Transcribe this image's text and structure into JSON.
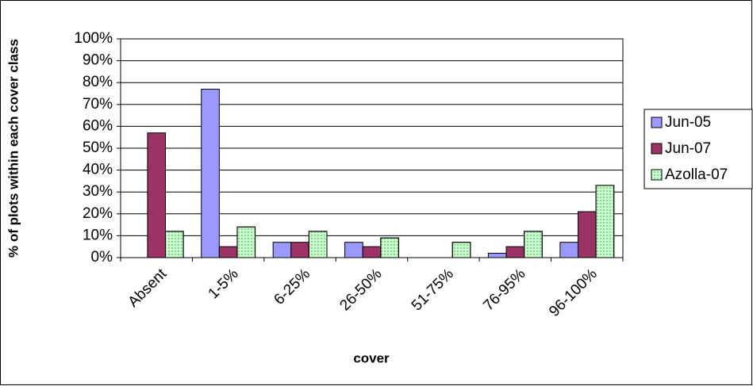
{
  "chart_data": {
    "type": "bar",
    "x_label": "cover",
    "y_label": "% of plots within each cover class",
    "categories": [
      "Absent",
      "1-5%",
      "6-25%",
      "26-50%",
      "51-75%",
      "76-95%",
      "96-100%"
    ],
    "series": [
      {
        "name": "Jun-05",
        "color": "#9999ff",
        "values": [
          0,
          77,
          7,
          7,
          0,
          2,
          7
        ]
      },
      {
        "name": "Jun-07",
        "color": "#993366",
        "values": [
          57,
          5,
          7,
          5,
          0,
          5,
          21
        ]
      },
      {
        "name": "Azolla-07",
        "color": "#ccffcc",
        "values": [
          12,
          14,
          12,
          9,
          7,
          12,
          33
        ]
      }
    ],
    "ylim": [
      0,
      100
    ],
    "yticks": [
      {
        "value": 0,
        "label": "0%"
      },
      {
        "value": 10,
        "label": "10%"
      },
      {
        "value": 20,
        "label": "20%"
      },
      {
        "value": 30,
        "label": "30%"
      },
      {
        "value": 40,
        "label": "40%"
      },
      {
        "value": 50,
        "label": "50%"
      },
      {
        "value": 60,
        "label": "60%"
      },
      {
        "value": 70,
        "label": "70%"
      },
      {
        "value": 80,
        "label": "80%"
      },
      {
        "value": 90,
        "label": "90%"
      },
      {
        "value": 100,
        "label": "100%"
      }
    ],
    "grid": true,
    "legend": "right"
  }
}
